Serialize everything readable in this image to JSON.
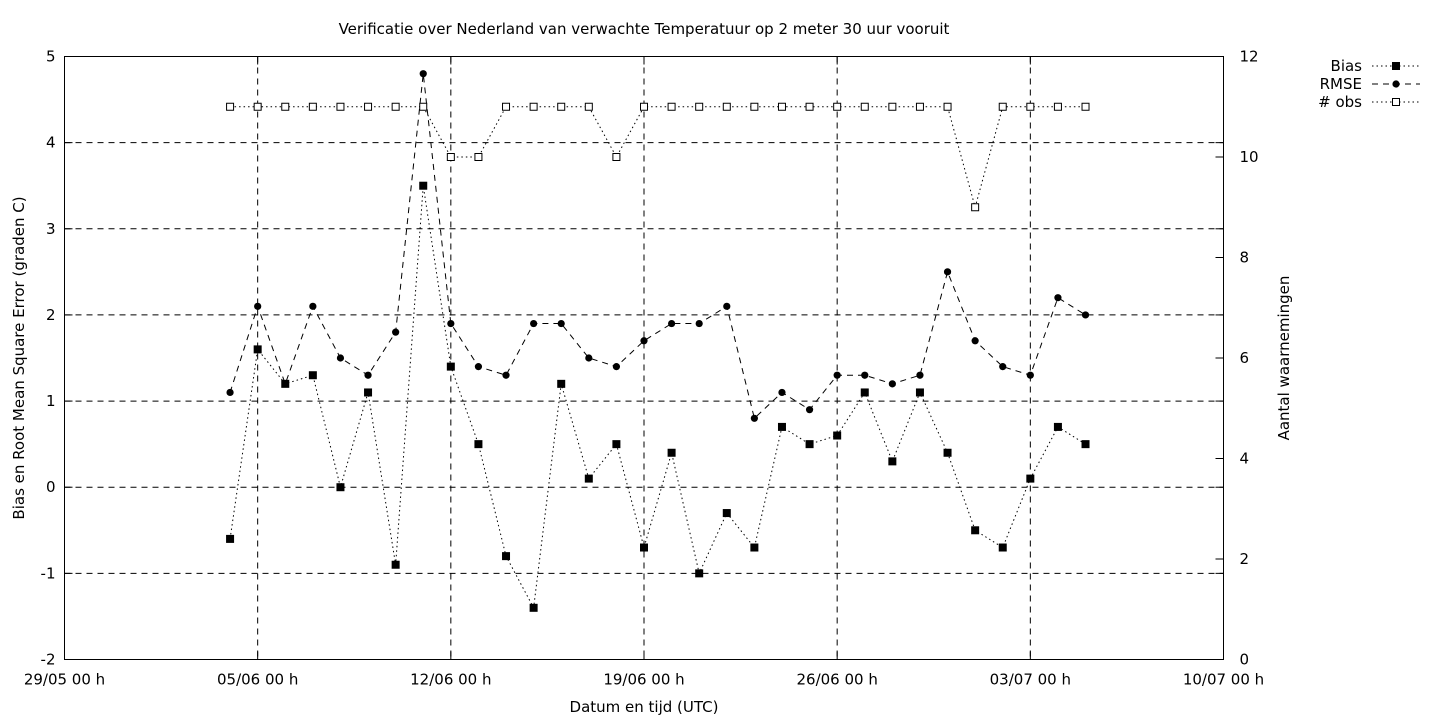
{
  "chart_data": {
    "type": "line",
    "title": "Verificatie over Nederland van verwachte Temperatuur op 2 meter 30 uur vooruit",
    "xlabel": "Datum en tijd (UTC)",
    "ylabel": "Bias en Root Mean Square Error (graden C)",
    "y2label": "Aantal waarnemingen",
    "x_range": [
      "2025-05-29",
      "2025-07-10"
    ],
    "x_ticks": [
      {
        "date": "2025-05-29",
        "label": "29/05 00 h"
      },
      {
        "date": "2025-06-05",
        "label": "05/06 00 h"
      },
      {
        "date": "2025-06-12",
        "label": "12/06 00 h"
      },
      {
        "date": "2025-06-19",
        "label": "19/06 00 h"
      },
      {
        "date": "2025-06-26",
        "label": "26/06 00 h"
      },
      {
        "date": "2025-07-03",
        "label": "03/07 00 h"
      },
      {
        "date": "2025-07-10",
        "label": "10/07 00 h"
      }
    ],
    "ylim": [
      -2,
      5
    ],
    "y_ticks": [
      "-2",
      "-1",
      "0",
      "1",
      "2",
      "3",
      "4",
      "5"
    ],
    "y2lim": [
      0,
      12
    ],
    "y2_ticks": [
      "0",
      "2",
      "4",
      "6",
      "8",
      "10",
      "12"
    ],
    "grid": true,
    "legend_position": "top-right outside",
    "x": [
      "2025-06-04",
      "2025-06-05",
      "2025-06-06",
      "2025-06-07",
      "2025-06-08",
      "2025-06-09",
      "2025-06-10",
      "2025-06-11",
      "2025-06-12",
      "2025-06-13",
      "2025-06-14",
      "2025-06-15",
      "2025-06-16",
      "2025-06-17",
      "2025-06-18",
      "2025-06-19",
      "2025-06-20",
      "2025-06-21",
      "2025-06-22",
      "2025-06-23",
      "2025-06-24",
      "2025-06-25",
      "2025-06-26",
      "2025-06-27",
      "2025-06-28",
      "2025-06-29",
      "2025-06-30",
      "2025-07-01",
      "2025-07-02",
      "2025-07-03",
      "2025-07-04",
      "2025-07-05"
    ],
    "series": [
      {
        "name": "Bias",
        "axis": "y1",
        "marker": "filled-square",
        "line": "dotted",
        "values": [
          -0.6,
          1.6,
          1.2,
          1.3,
          0.0,
          1.1,
          -0.9,
          3.5,
          1.4,
          0.5,
          -0.8,
          -1.4,
          1.2,
          0.1,
          0.5,
          -0.7,
          0.4,
          -1.0,
          -0.3,
          -0.7,
          0.7,
          0.5,
          0.6,
          1.1,
          0.3,
          1.1,
          0.4,
          -0.5,
          -0.7,
          0.1,
          0.7,
          0.5
        ]
      },
      {
        "name": "RMSE",
        "axis": "y1",
        "marker": "filled-circle",
        "line": "dashed",
        "values": [
          1.1,
          2.1,
          1.2,
          2.1,
          1.5,
          1.3,
          1.8,
          4.8,
          1.9,
          1.4,
          1.3,
          1.9,
          1.9,
          1.5,
          1.4,
          1.7,
          1.9,
          1.9,
          2.1,
          0.8,
          1.1,
          0.9,
          1.3,
          1.3,
          1.2,
          1.3,
          2.5,
          1.7,
          1.4,
          1.3,
          2.2,
          2.0
        ]
      },
      {
        "name": "# obs",
        "axis": "y2",
        "marker": "open-square",
        "line": "dotted",
        "values": [
          11,
          11,
          11,
          11,
          11,
          11,
          11,
          11,
          10,
          10,
          11,
          11,
          11,
          11,
          10,
          11,
          11,
          11,
          11,
          11,
          11,
          11,
          11,
          11,
          11,
          11,
          11,
          9,
          11,
          11,
          11,
          11
        ]
      }
    ]
  }
}
